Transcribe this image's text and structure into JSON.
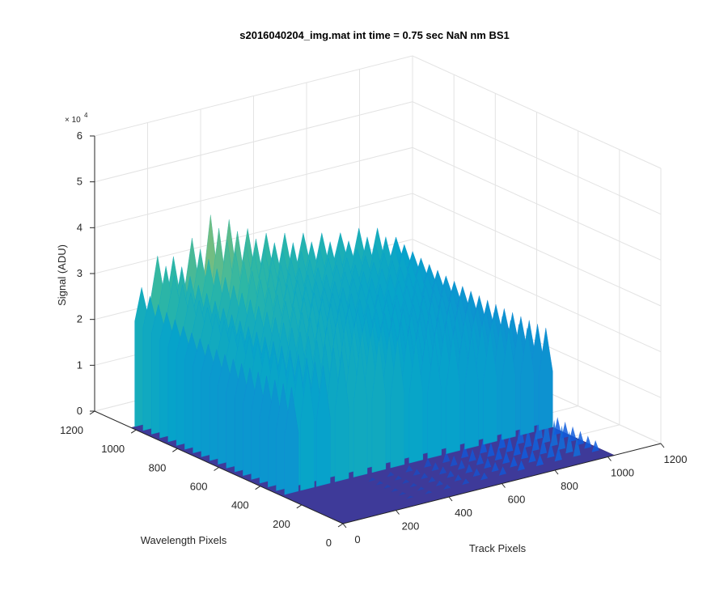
{
  "chart_data": {
    "type": "surface",
    "title": "s2016040204_img.mat int time = 0.75 sec  NaN nm BS1",
    "xlabel": "Track Pixels",
    "ylabel": "Wavelength Pixels",
    "zlabel": "Signal (ADU)",
    "z_multiplier_label": "× 10",
    "z_multiplier_exponent": "4",
    "xlim": [
      0,
      1200
    ],
    "ylim": [
      0,
      1200
    ],
    "zlim": [
      0,
      6
    ],
    "z_scale": 10000,
    "xticks": [
      0,
      200,
      400,
      600,
      800,
      1000,
      1200
    ],
    "yticks": [
      0,
      200,
      400,
      600,
      800,
      1000,
      1200
    ],
    "zticks": [
      0,
      1,
      2,
      3,
      4,
      5,
      6
    ],
    "grid": true,
    "colormap": [
      "#352a87",
      "#0f5cdd",
      "#1481d6",
      "#06a4ca",
      "#2eb7a4",
      "#87bf77",
      "#d1bb59",
      "#fec832",
      "#f9fb0e"
    ],
    "baseline_color": "#3e3a99",
    "surface_extent": {
      "track": [
        0,
        1024
      ],
      "wavelength": [
        0,
        1024
      ]
    },
    "bright_band": {
      "wavelength_range": [
        300,
        1024
      ],
      "track_range": [
        0,
        1024
      ]
    },
    "weak_band": {
      "wavelength_range": [
        0,
        300
      ],
      "track_range": [
        250,
        1024
      ]
    },
    "strong_peaks": {
      "track": [
        40,
        100,
        160,
        230,
        300,
        370,
        440,
        510,
        580,
        650,
        720,
        790,
        860,
        930,
        1000
      ],
      "peak_signal": [
        3.0,
        3.6,
        3.5,
        3.8,
        4.2,
        4.0,
        3.7,
        3.5,
        3.4,
        3.3,
        3.2,
        3.1,
        3.1,
        3.0,
        2.7
      ],
      "plateau_signal": [
        2.3,
        2.7,
        2.6,
        2.8,
        2.9,
        2.9,
        2.8,
        2.7,
        2.6,
        2.6,
        2.5,
        2.5,
        2.4,
        2.3,
        2.2
      ]
    },
    "weak_peaks": {
      "track": [
        300,
        370,
        440,
        510,
        580,
        650,
        720,
        790,
        860,
        930,
        1000
      ],
      "peak_signal": [
        0.08,
        0.1,
        0.15,
        0.2,
        0.25,
        0.3,
        0.35,
        0.4,
        0.5,
        0.7,
        0.4
      ]
    }
  }
}
